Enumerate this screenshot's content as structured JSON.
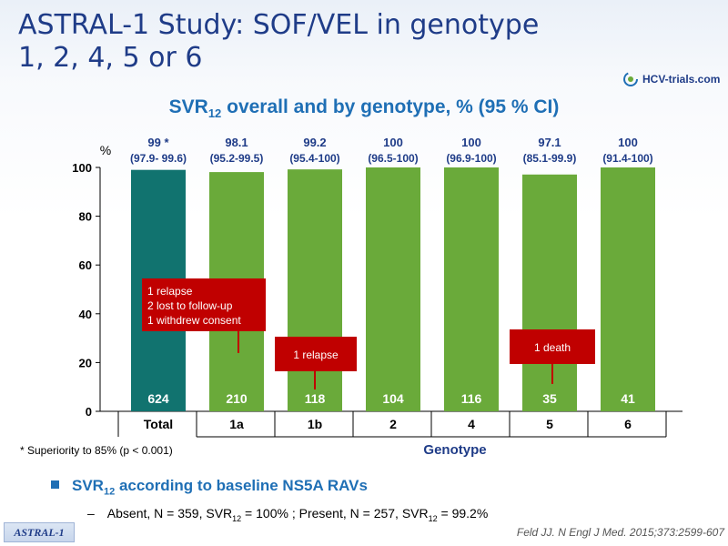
{
  "slide": {
    "title_line1": "ASTRAL-1 Study: SOF/VEL in genotype",
    "title_line2": "1, 2, 4, 5 or 6",
    "logo_text": "HCV-trials.com",
    "logo_icon": "swirl-icon",
    "chart_title_pre": "SVR",
    "chart_title_sub": "12",
    "chart_title_post": " overall and by genotype, % (95 % CI)",
    "footnote": "* Superiority to 85% (p < 0.001)",
    "bullet_pre": "SVR",
    "bullet_sub": "12",
    "bullet_post": " according to baseline NS5A RAVs",
    "sub_dash": "–",
    "sub_part1": "Absent, N = 359, SVR",
    "sub_sub1": "12",
    "sub_part2": " = 100% ; Present, N = 257, SVR",
    "sub_sub2": "12",
    "sub_part3": " = 99.2%",
    "study_tag": "ASTRAL-1",
    "reference": "Feld JJ. N Engl J Med. 2015;373:2599-607"
  },
  "colors": {
    "title": "#1f3c88",
    "accent_blue": "#1f6fb5",
    "bar_total": "#11736f",
    "bar_genotype": "#6aaa3a",
    "callout_red": "#c00000"
  },
  "chart_data": {
    "type": "bar",
    "categories": [
      "Total",
      "1a",
      "1b",
      "2",
      "4",
      "5",
      "6"
    ],
    "values": [
      99,
      98.1,
      99.2,
      100,
      100,
      97.1,
      100
    ],
    "value_labels": [
      "99 *",
      "98.1",
      "99.2",
      "100",
      "100",
      "97.1",
      "100"
    ],
    "ci_labels": [
      "(97.9- 99.6)",
      "(95.2-99.5)",
      "(95.4-100)",
      "(96.5-100)",
      "(96.9-100)",
      "(85.1-99.9)",
      "(91.4-100)"
    ],
    "n_labels": [
      "624",
      "210",
      "118",
      "104",
      "116",
      "35",
      "41"
    ],
    "ylabel": "%",
    "xlabel": "Genotype",
    "ylim": [
      0,
      100
    ],
    "yticks": [
      0,
      20,
      40,
      60,
      80,
      100
    ],
    "grid": false,
    "annotations": [
      {
        "category": "1a",
        "lines": [
          "1 relapse",
          "2 lost to follow-up",
          "1 withdrew consent"
        ]
      },
      {
        "category": "1b",
        "lines": [
          "1 relapse"
        ]
      },
      {
        "category": "5",
        "lines": [
          "1 death"
        ]
      }
    ]
  }
}
